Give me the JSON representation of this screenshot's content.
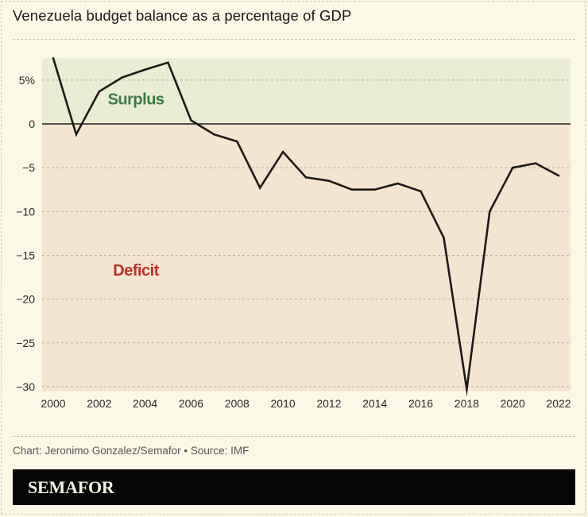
{
  "title": "Venezuela budget balance as a percentage of GDP",
  "credit": "Chart: Jeronimo Gonzalez/Semafor • Source: IMF",
  "brand": "SEMAFOR",
  "colors": {
    "background": "#fbf8e6",
    "surplus_band": "#e9edd3",
    "deficit_band": "#f4e5d0",
    "surplus_text": "#3c7a45",
    "deficit_text": "#b8312a",
    "line": "#1e1a17",
    "grid": "#b9b3a3",
    "brand_bar": "#050505"
  },
  "chart_data": {
    "type": "line",
    "title": "Venezuela budget balance as a percentage of GDP",
    "xlabel": "",
    "ylabel": "",
    "x": [
      2000,
      2001,
      2002,
      2003,
      2004,
      2005,
      2006,
      2007,
      2008,
      2009,
      2010,
      2011,
      2012,
      2013,
      2014,
      2015,
      2016,
      2017,
      2018,
      2019,
      2020,
      2021,
      2022
    ],
    "series": [
      {
        "name": "Budget balance (% of GDP)",
        "values": [
          7.5,
          -1.2,
          3.7,
          5.3,
          6.2,
          7.0,
          0.4,
          -1.2,
          -2.0,
          -7.3,
          -3.2,
          -6.1,
          -6.5,
          -7.5,
          -7.5,
          -6.8,
          -7.7,
          -13.0,
          -30.3,
          -10.0,
          -5.0,
          -4.5,
          -5.9
        ]
      }
    ],
    "xlim": [
      2000,
      2022
    ],
    "ylim": [
      -30.5,
      7.5
    ],
    "x_ticks": [
      2000,
      2002,
      2004,
      2006,
      2008,
      2010,
      2012,
      2014,
      2016,
      2018,
      2020,
      2022
    ],
    "x_tick_labels": [
      "2000",
      "2002",
      "2004",
      "2006",
      "2008",
      "2010",
      "2012",
      "2014",
      "2016",
      "2018",
      "2020",
      "2022"
    ],
    "y_ticks": [
      5,
      0,
      -5,
      -10,
      -15,
      -20,
      -25,
      -30
    ],
    "y_tick_labels": [
      "5%",
      "0",
      "−5",
      "−10",
      "−15",
      "−20",
      "−25",
      "−30"
    ],
    "grid": true,
    "zones": [
      {
        "name": "surplus",
        "label": "Surplus",
        "from": 0,
        "to": 7.5,
        "label_at": {
          "x": 2003.6,
          "y": 2.2
        }
      },
      {
        "name": "deficit",
        "label": "Deficit",
        "from": -30.5,
        "to": 0,
        "label_at": {
          "x": 2003.6,
          "y": -17.3
        }
      }
    ]
  }
}
